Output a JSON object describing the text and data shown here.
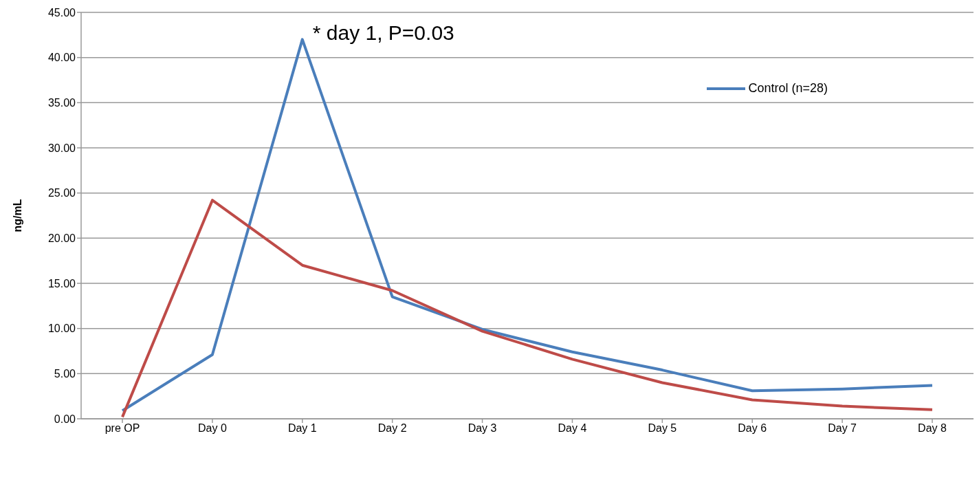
{
  "chart_data": {
    "type": "line",
    "ylabel": "ng/mL",
    "categories": [
      "pre OP",
      "Day 0",
      "Day 1",
      "Day 2",
      "Day 3",
      "Day 4",
      "Day 5",
      "Day 6",
      "Day 7",
      "Day 8"
    ],
    "series": [
      {
        "name": "Control (n=28)",
        "color": "#4a7ebb",
        "values": [
          0.9,
          7.1,
          42.0,
          13.5,
          9.9,
          7.4,
          5.4,
          3.1,
          3.3,
          3.7
        ]
      },
      {
        "color": "#be4b48",
        "values": [
          0.2,
          24.2,
          17.0,
          14.2,
          9.7,
          6.6,
          4.0,
          2.1,
          1.4,
          1.0
        ]
      }
    ],
    "ylim": [
      0,
      45
    ],
    "yticks": [
      {
        "value": 0,
        "label": "0.00"
      },
      {
        "value": 5,
        "label": "5.00"
      },
      {
        "value": 10,
        "label": "10.00"
      },
      {
        "value": 15,
        "label": "15.00"
      },
      {
        "value": 20,
        "label": "20.00"
      },
      {
        "value": 25,
        "label": "25.00"
      },
      {
        "value": 30,
        "label": "30.00"
      },
      {
        "value": 35,
        "label": "35.00"
      },
      {
        "value": 40,
        "label": "40.00"
      },
      {
        "value": 45,
        "label": "45.00"
      }
    ],
    "grid": "y",
    "legend": "top right",
    "marker": "none",
    "line_style": "solid",
    "annotations": [
      {
        "text": "* day 1, P=0.03",
        "x": "Day 1",
        "y": 42
      }
    ]
  }
}
